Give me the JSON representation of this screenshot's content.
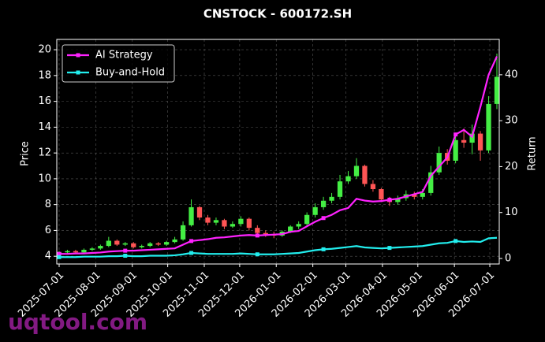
{
  "chart_data": {
    "type": "candlestick",
    "title": "CNSTOCK - 600172.SH",
    "ylabel": "Price",
    "y2label": "Return",
    "watermark": "uqtool.com",
    "grid": true,
    "legend": "upper left",
    "up_color": "#44ee44",
    "down_color": "#ff5555",
    "x": [
      "2025-07-01",
      "2025-07-08",
      "2025-07-15",
      "2025-07-22",
      "2025-07-29",
      "2025-08-05",
      "2025-08-12",
      "2025-08-19",
      "2025-08-26",
      "2025-09-02",
      "2025-09-09",
      "2025-09-16",
      "2025-09-23",
      "2025-09-30",
      "2025-10-07",
      "2025-10-14",
      "2025-10-21",
      "2025-10-28",
      "2025-11-04",
      "2025-11-11",
      "2025-11-18",
      "2025-11-25",
      "2025-12-02",
      "2025-12-09",
      "2025-12-16",
      "2025-12-23",
      "2025-12-30",
      "2026-01-06",
      "2026-01-13",
      "2026-01-20",
      "2026-01-27",
      "2026-02-03",
      "2026-02-10",
      "2026-02-17",
      "2026-02-24",
      "2026-03-03",
      "2026-03-10",
      "2026-03-17",
      "2026-03-24",
      "2026-03-31",
      "2026-04-07",
      "2026-04-14",
      "2026-04-21",
      "2026-04-28",
      "2026-05-05",
      "2026-05-12",
      "2026-05-19",
      "2026-05-26",
      "2026-06-02",
      "2026-06-09",
      "2026-06-16",
      "2026-06-23",
      "2026-06-30",
      "2026-07-07"
    ],
    "open": [
      4.2,
      4.3,
      4.4,
      4.3,
      4.5,
      4.6,
      4.8,
      5.2,
      4.9,
      5.0,
      4.7,
      4.8,
      5.0,
      4.9,
      5.1,
      5.3,
      6.4,
      7.8,
      7.0,
      6.6,
      6.8,
      6.3,
      6.5,
      6.9,
      6.2,
      5.8,
      5.7,
      5.6,
      5.9,
      6.3,
      6.5,
      7.2,
      7.8,
      8.3,
      8.6,
      9.8,
      10.2,
      11.0,
      9.6,
      9.2,
      8.4,
      8.2,
      8.5,
      8.8,
      8.6,
      8.9,
      10.5,
      12.0,
      11.4,
      13.0,
      12.8,
      13.5,
      12.2,
      15.8
    ],
    "high": [
      4.4,
      4.5,
      4.5,
      4.6,
      4.7,
      4.9,
      5.5,
      5.3,
      5.1,
      5.1,
      4.9,
      5.1,
      5.1,
      5.2,
      5.5,
      6.7,
      8.4,
      7.9,
      7.2,
      7.0,
      6.9,
      6.7,
      7.1,
      7.0,
      6.4,
      6.0,
      5.9,
      6.0,
      6.4,
      6.7,
      7.4,
      8.1,
      8.6,
      8.9,
      10.3,
      10.6,
      11.6,
      11.1,
      9.9,
      9.3,
      8.6,
      8.7,
      9.1,
      9.0,
      9.2,
      11.0,
      12.5,
      12.3,
      13.4,
      13.9,
      14.2,
      13.7,
      16.4,
      19.7
    ],
    "low": [
      4.1,
      4.2,
      4.2,
      4.2,
      4.4,
      4.5,
      4.7,
      4.8,
      4.8,
      4.6,
      4.6,
      4.7,
      4.8,
      4.8,
      5.0,
      5.2,
      6.3,
      6.8,
      6.4,
      6.4,
      6.1,
      6.2,
      6.3,
      6.0,
      5.6,
      5.5,
      5.4,
      5.5,
      5.8,
      6.1,
      6.3,
      7.0,
      7.6,
      8.1,
      8.4,
      9.6,
      10.0,
      9.4,
      9.0,
      8.2,
      7.9,
      8.0,
      8.3,
      8.4,
      8.4,
      8.7,
      10.3,
      11.1,
      11.2,
      12.4,
      11.9,
      11.4,
      12.0,
      15.4
    ],
    "close": [
      4.3,
      4.4,
      4.3,
      4.5,
      4.6,
      4.8,
      5.2,
      4.9,
      5.0,
      4.7,
      4.8,
      5.0,
      4.9,
      5.1,
      5.3,
      6.4,
      7.8,
      7.0,
      6.6,
      6.8,
      6.3,
      6.5,
      6.9,
      6.2,
      5.8,
      5.7,
      5.6,
      5.9,
      6.3,
      6.5,
      7.2,
      7.8,
      8.3,
      8.6,
      9.8,
      10.2,
      11.0,
      9.6,
      9.2,
      8.4,
      8.2,
      8.5,
      8.8,
      8.6,
      8.9,
      10.5,
      12.0,
      11.4,
      13.0,
      12.8,
      13.5,
      12.2,
      15.8,
      17.9
    ],
    "series": [
      {
        "name": "AI Strategy",
        "color": "#ff22ff",
        "axis": "y2",
        "values": [
          1.0,
          1.0,
          1.1,
          1.1,
          1.2,
          1.3,
          1.5,
          1.6,
          1.7,
          1.7,
          1.8,
          1.9,
          2.0,
          2.1,
          2.2,
          3.0,
          3.8,
          4.0,
          4.2,
          4.5,
          4.6,
          4.8,
          5.0,
          5.1,
          5.0,
          5.1,
          5.2,
          5.3,
          5.8,
          6.0,
          7.0,
          8.0,
          8.8,
          9.5,
          10.5,
          11.0,
          13.0,
          12.6,
          12.4,
          12.5,
          12.8,
          13.0,
          13.5,
          14.0,
          14.5,
          18.0,
          20.0,
          22.0,
          27.0,
          28.0,
          26.5,
          33.0,
          40.0,
          44.0
        ]
      },
      {
        "name": "Buy-and-Hold",
        "color": "#22eeee",
        "axis": "y2",
        "values": [
          0.3,
          0.3,
          0.3,
          0.4,
          0.4,
          0.4,
          0.5,
          0.5,
          0.6,
          0.5,
          0.5,
          0.6,
          0.6,
          0.6,
          0.7,
          0.9,
          1.2,
          1.1,
          1.0,
          1.0,
          1.0,
          1.0,
          1.1,
          1.0,
          0.9,
          0.9,
          0.9,
          1.0,
          1.1,
          1.2,
          1.5,
          1.8,
          2.0,
          2.1,
          2.3,
          2.5,
          2.7,
          2.4,
          2.3,
          2.2,
          2.3,
          2.4,
          2.5,
          2.6,
          2.7,
          3.0,
          3.3,
          3.4,
          3.8,
          3.6,
          3.7,
          3.6,
          4.4,
          4.5
        ]
      }
    ],
    "xlim": [
      "2025-06-29",
      "2026-07-09"
    ],
    "xticks": [
      "2025-07-01",
      "2025-08-01",
      "2025-09-01",
      "2025-10-01",
      "2025-11-01",
      "2025-12-01",
      "2026-01-01",
      "2026-02-01",
      "2026-03-01",
      "2026-04-01",
      "2026-05-01",
      "2026-06-01",
      "2026-07-01"
    ],
    "ylim": [
      3.4,
      20.8
    ],
    "yticks": [
      4,
      6,
      8,
      10,
      12,
      14,
      16,
      18,
      20
    ],
    "y2lim": [
      -1.2,
      47.7
    ],
    "y2ticks": [
      0,
      10,
      20,
      30,
      40
    ]
  }
}
